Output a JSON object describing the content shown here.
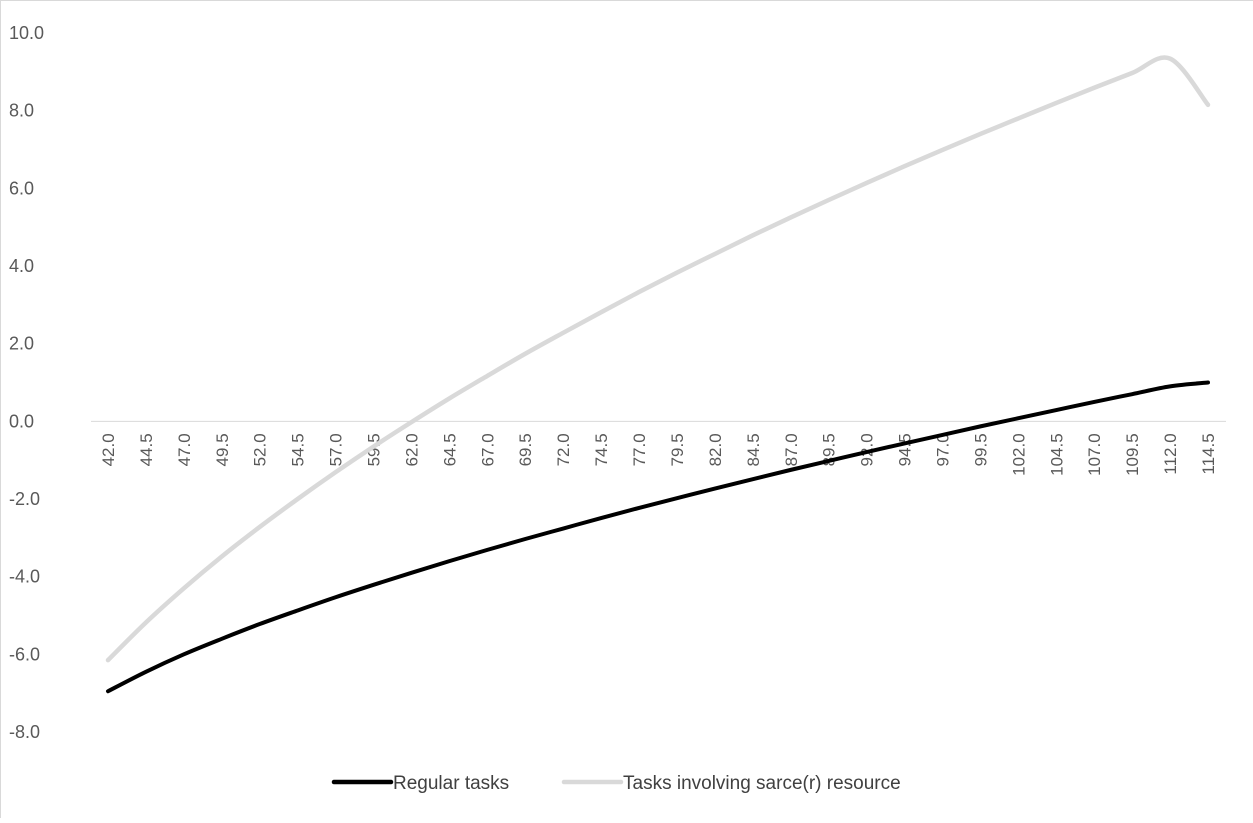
{
  "chart_data": {
    "type": "line",
    "title": "",
    "xlabel": "",
    "ylabel": "",
    "ylim": [
      -8.0,
      10.0
    ],
    "y_ticks": [
      "10.0",
      "8.0",
      "6.0",
      "4.0",
      "2.0",
      "0.0",
      "-2.0",
      "-4.0",
      "-6.0",
      "-8.0"
    ],
    "grid": false,
    "legend_position": "bottom",
    "categories": [
      "42.0",
      "44.5",
      "47.0",
      "49.5",
      "52.0",
      "54.5",
      "57.0",
      "59.5",
      "62.0",
      "64.5",
      "67.0",
      "69.5",
      "72.0",
      "74.5",
      "77.0",
      "79.5",
      "82.0",
      "84.5",
      "87.0",
      "89.5",
      "92.0",
      "94.5",
      "97.0",
      "99.5",
      "102.0",
      "104.5",
      "107.0",
      "109.5",
      "112.0",
      "114.5"
    ],
    "series": [
      {
        "name": "Regular tasks",
        "color": "#000000",
        "values": [
          -6.95,
          -6.45,
          -6.0,
          -5.6,
          -5.22,
          -4.87,
          -4.53,
          -4.21,
          -3.9,
          -3.6,
          -3.31,
          -3.03,
          -2.76,
          -2.49,
          -2.23,
          -1.98,
          -1.73,
          -1.49,
          -1.25,
          -1.02,
          -0.79,
          -0.57,
          -0.35,
          -0.13,
          0.08,
          0.29,
          0.5,
          0.7,
          0.9,
          1.0
        ]
      },
      {
        "name": "Tasks involving sarce(r) resource",
        "color": "#d9d9d9",
        "values": [
          -6.15,
          -5.18,
          -4.3,
          -3.48,
          -2.72,
          -2.0,
          -1.31,
          -0.65,
          -0.02,
          0.59,
          1.17,
          1.74,
          2.28,
          2.81,
          3.33,
          3.83,
          4.31,
          4.79,
          5.25,
          5.7,
          6.14,
          6.57,
          6.99,
          7.4,
          7.8,
          8.2,
          8.59,
          8.97,
          9.34,
          8.15
        ]
      }
    ]
  }
}
